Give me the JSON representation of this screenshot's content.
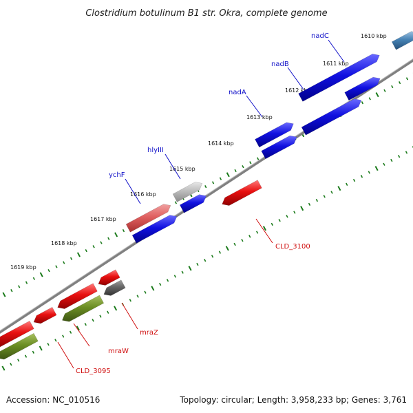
{
  "title": "Clostridium botulinum B1 str. Okra, complete genome",
  "footer": {
    "accession": "Accession: NC_010516",
    "summary": "Topology: circular; Length: 3,958,233 bp; Genes: 3,761"
  },
  "ticks": [
    {
      "label": "1610 kbp"
    },
    {
      "label": "1611 kbp"
    },
    {
      "label": "1612 kbp"
    },
    {
      "label": "1613 kbp"
    },
    {
      "label": "1614 kbp"
    },
    {
      "label": "1615 kbp"
    },
    {
      "label": "1616 kbp"
    },
    {
      "label": "1617 kbp"
    },
    {
      "label": "1618 kbp"
    },
    {
      "label": "1619 kbp"
    }
  ],
  "gene_labels": [
    {
      "name": "nadC",
      "color": "blue"
    },
    {
      "name": "nadB",
      "color": "blue"
    },
    {
      "name": "nadA",
      "color": "blue"
    },
    {
      "name": "hlyIII",
      "color": "blue"
    },
    {
      "name": "ychF",
      "color": "blue"
    },
    {
      "name": "CLD_3100",
      "color": "red"
    },
    {
      "name": "mraZ",
      "color": "red"
    },
    {
      "name": "mraW",
      "color": "red"
    },
    {
      "name": "CLD_3095",
      "color": "red"
    }
  ],
  "colors": {
    "cds_blue": "#1010e0",
    "cds_red": "#e81010",
    "cds_olive": "#6b8e23",
    "cds_gray": "#666666",
    "cds_light_gray": "#b8b8b8",
    "cds_pink": "#e06060",
    "cds_steel": "#4682b4",
    "backbone": "#808080",
    "tick_green": "#1a7a1a",
    "label_blue": "#1010c8",
    "label_red": "#d01010"
  }
}
